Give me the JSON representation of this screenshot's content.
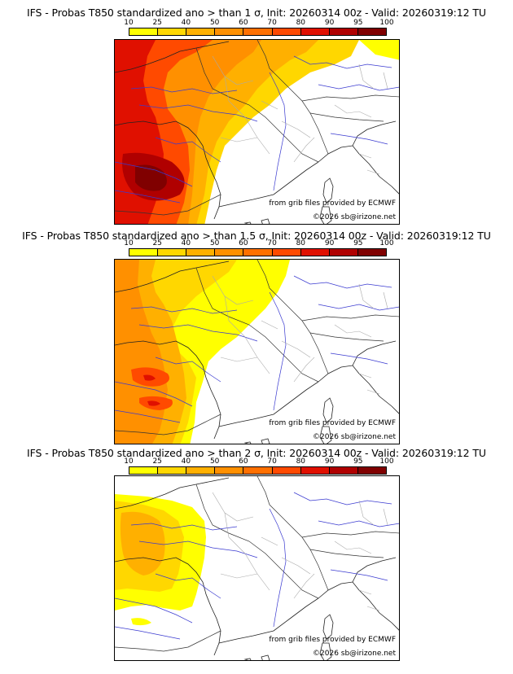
{
  "colorbar": {
    "ticks": [
      "10",
      "25",
      "40",
      "50",
      "60",
      "70",
      "80",
      "90",
      "95",
      "100"
    ],
    "colors": [
      "#ffff00",
      "#ffd700",
      "#ffb000",
      "#ff9000",
      "#ff7000",
      "#ff4a00",
      "#e01000",
      "#b00000",
      "#800000"
    ]
  },
  "panels": [
    {
      "title": "IFS - Probas T850  standardized ano > than 1 σ, Init: 20260314 00z - Valid: 20260319:12 TU",
      "credit": "from grib files provided by ECMWF",
      "copyright": "©2026 sb@irizone.net"
    },
    {
      "title": "IFS - Probas T850  standardized ano > than 1.5 σ, Init: 20260314 00z - Valid: 20260319:12 TU",
      "credit": "from grib files provided by ECMWF",
      "copyright": "©2026 sb@irizone.net"
    },
    {
      "title": "IFS - Probas T850  standardized ano > than 2 σ, Init: 20260314 00z - Valid: 20260319:12 TU",
      "credit": "from grib files provided by ECMWF",
      "copyright": "©2026 sb@irizone.net"
    }
  ]
}
